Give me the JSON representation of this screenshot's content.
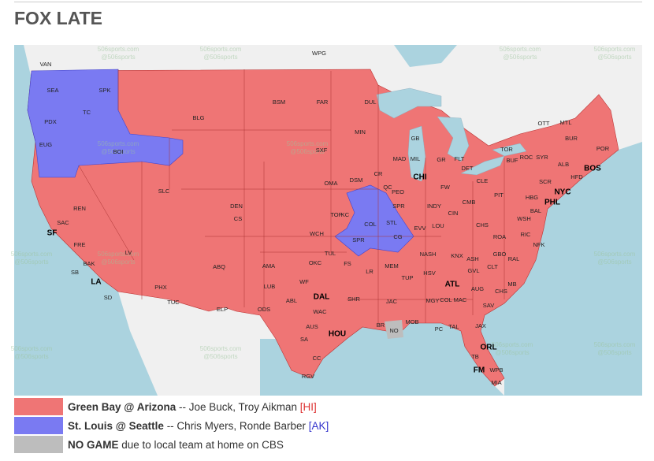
{
  "header": {
    "title": "FOX LATE"
  },
  "watermark": [
    "506sports.com",
    "@506sports"
  ],
  "cities": [
    "VAN",
    "WPG",
    "SEA",
    "SPK",
    "PDX",
    "TC",
    "EUG",
    "BOI",
    "BLG",
    "BSM",
    "FAR",
    "DUL",
    "MIN",
    "GB",
    "MAD",
    "MIL",
    "GR",
    "FLT",
    "DET",
    "TOR",
    "OTT",
    "MTL",
    "BUR",
    "POR",
    "ROC",
    "SYR",
    "BUF",
    "ALB",
    "BOS",
    "HFD",
    "NYC",
    "SCR",
    "CLE",
    "PIT",
    "HBG",
    "PHL",
    "BAL",
    "WSH",
    "SXF",
    "OMA",
    "DSM",
    "CR",
    "QC",
    "CHI",
    "PEO",
    "FW",
    "INDY",
    "CMB",
    "SPR",
    "STL",
    "COL",
    "CG",
    "LOU",
    "EVV",
    "CIN",
    "CHS",
    "DEN",
    "CS",
    "SLC",
    "REN",
    "SAC",
    "SF",
    "FRE",
    "BAK",
    "LV",
    "LA",
    "SB",
    "SD",
    "PHX",
    "TUC",
    "ABQ",
    "AMA",
    "LUB",
    "ELP",
    "ODS",
    "ABL",
    "DAL",
    "WF",
    "WAC",
    "AUS",
    "SA",
    "HOU",
    "CC",
    "RGV",
    "OKC",
    "TUL",
    "WCH",
    "TOP",
    "KC",
    "SPR",
    "FS",
    "LR",
    "MEM",
    "JAC",
    "SHR",
    "BR",
    "NO",
    "MOB",
    "NASH",
    "KNX",
    "HSV",
    "TUP",
    "ATL",
    "MGY",
    "COL",
    "MAC",
    "AUG",
    "GVL",
    "ASH",
    "CLT",
    "GBO",
    "RAL",
    "NFK",
    "RIC",
    "ROA",
    "CHS",
    "SAV",
    "MB",
    "JAX",
    "TAL",
    "PC",
    "ORL",
    "TB",
    "WPB",
    "FM",
    "MIA"
  ],
  "legend": [
    {
      "color": "#ef7575",
      "game": "Green Bay @ Arizona",
      "announcers": " -- Joe Buck, Troy Aikman ",
      "extra": "[HI]",
      "extra_color": "#d33"
    },
    {
      "color": "#7a7af2",
      "game": "St. Louis @ Seattle",
      "announcers": " -- Chris Myers, Ronde Barber ",
      "extra": "[AK]",
      "extra_color": "#33c"
    },
    {
      "color": "#bdbdbd",
      "game": "NO GAME",
      "announcers": " due to local team at home on CBS"
    }
  ]
}
